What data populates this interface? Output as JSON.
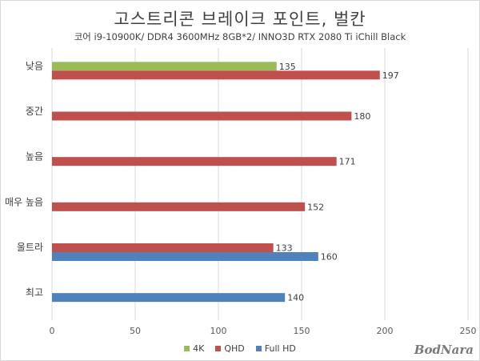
{
  "chart_data": {
    "type": "bar",
    "orientation": "horizontal",
    "title": "고스트리콘 브레이크 포인트, 벌칸",
    "subtitle": "코어 i9-10900K/ DDR4 3600MHz 8GB*2/ INNO3D RTX 2080 Ti iChill Black",
    "categories": [
      "낮음",
      "중간",
      "높음",
      "매우 높음",
      "울트라",
      "최고"
    ],
    "series": [
      {
        "name": "4K",
        "color": "#9bbb59",
        "values": [
          135,
          null,
          null,
          null,
          null,
          null
        ]
      },
      {
        "name": "QHD",
        "color": "#c0504d",
        "values": [
          197,
          180,
          171,
          152,
          133,
          null
        ]
      },
      {
        "name": "Full HD",
        "color": "#4f81bd",
        "values": [
          null,
          null,
          null,
          null,
          160,
          140
        ]
      }
    ],
    "xlim": [
      0,
      250
    ],
    "xticks": [
      "0",
      "50",
      "100",
      "150",
      "200",
      "250"
    ],
    "grid": true,
    "legend_position": "bottom"
  },
  "watermark": "BodNara"
}
